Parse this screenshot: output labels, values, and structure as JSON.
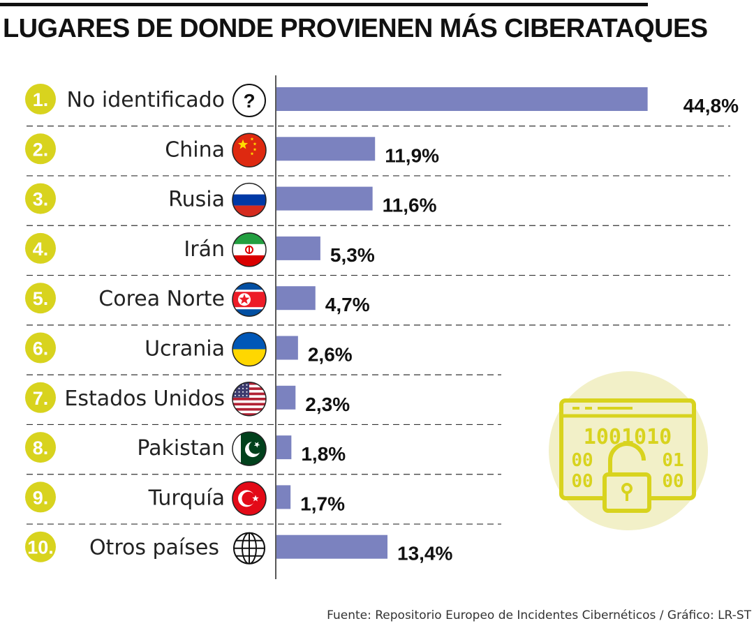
{
  "title": "LUGARES DE DONDE PROVIENEN MÁS CIBERATAQUES",
  "source": "Fuente: Repositorio Europeo de Incidentes Cibernéticos / Gráfico: LR-ST",
  "colors": {
    "bar": "#7b82bf",
    "rank_circle": "#d8d31e",
    "lock_bg": "#f2f0c8",
    "lock_line": "#d8d31e"
  },
  "lock_graphic": {
    "binary_lines": [
      "1001010",
      "00",
      "01",
      "00",
      "00"
    ]
  },
  "chart_data": {
    "type": "bar",
    "orientation": "horizontal",
    "title": "LUGARES DE DONDE PROVIENEN MÁS CIBERATAQUES",
    "xlim": [
      0,
      45
    ],
    "grid": false,
    "rows": [
      {
        "rank": "1.",
        "category": "No identificado",
        "value": 44.8,
        "value_label": "44,8%",
        "icon": "question-mark-icon"
      },
      {
        "rank": "2.",
        "category": "China",
        "value": 11.9,
        "value_label": "11,9%",
        "icon": "china-flag-icon"
      },
      {
        "rank": "3.",
        "category": "Rusia",
        "value": 11.6,
        "value_label": "11,6%",
        "icon": "russia-flag-icon"
      },
      {
        "rank": "4.",
        "category": "Irán",
        "value": 5.3,
        "value_label": "5,3%",
        "icon": "iran-flag-icon"
      },
      {
        "rank": "5.",
        "category": "Corea Norte",
        "value": 4.7,
        "value_label": "4,7%",
        "icon": "north-korea-flag-icon"
      },
      {
        "rank": "6.",
        "category": "Ucrania",
        "value": 2.6,
        "value_label": "2,6%",
        "icon": "ukraine-flag-icon"
      },
      {
        "rank": "7.",
        "category": "Estados Unidos",
        "value": 2.3,
        "value_label": "2,3%",
        "icon": "usa-flag-icon"
      },
      {
        "rank": "8.",
        "category": "Pakistan",
        "value": 1.8,
        "value_label": "1,8%",
        "icon": "pakistan-flag-icon"
      },
      {
        "rank": "9.",
        "category": "Turquía",
        "value": 1.7,
        "value_label": "1,7%",
        "icon": "turkey-flag-icon"
      },
      {
        "rank": "10.",
        "category": "Otros países",
        "value": 13.4,
        "value_label": "13,4%",
        "icon": "globe-icon"
      }
    ]
  }
}
